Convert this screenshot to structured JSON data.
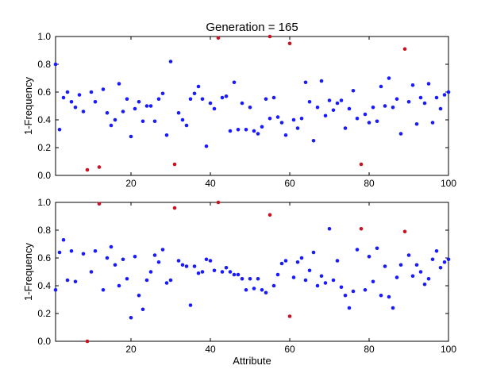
{
  "colors": {
    "normal": "#1a1aff",
    "highlight": "#cc1122",
    "axis": "#000000"
  },
  "chart_data": [
    {
      "type": "scatter",
      "title": "Generation = 165",
      "xlabel": "",
      "ylabel": "1-Frequency",
      "xlim": [
        1,
        100
      ],
      "ylim": [
        0,
        1
      ],
      "xticks": [
        20,
        40,
        60,
        80,
        100
      ],
      "yticks": [
        0,
        0.2,
        0.4,
        0.6,
        0.8,
        1.0
      ],
      "grid": false,
      "series": [
        {
          "x": [
            1,
            2,
            3,
            4,
            5,
            6,
            7,
            8,
            10,
            11,
            13,
            14,
            15,
            16,
            17,
            18,
            19,
            20,
            21,
            22,
            23,
            24,
            25,
            26,
            27,
            28,
            29,
            30,
            32,
            33,
            34,
            35,
            36,
            37,
            38,
            39,
            40,
            41,
            43,
            44,
            45,
            46,
            47,
            48,
            49,
            50,
            51,
            52,
            53,
            54,
            55,
            56,
            57,
            58,
            59,
            61,
            62,
            63,
            64,
            65,
            66,
            67,
            68,
            69,
            70,
            71,
            72,
            73,
            74,
            75,
            76,
            77,
            79,
            80,
            81,
            82,
            83,
            84,
            85,
            86,
            87,
            88,
            90,
            91,
            92,
            93,
            94,
            95,
            96,
            97,
            98,
            99,
            100
          ],
          "y": [
            0.8,
            0.33,
            0.56,
            0.6,
            0.53,
            0.49,
            0.58,
            0.46,
            0.6,
            0.53,
            0.62,
            0.45,
            0.36,
            0.4,
            0.66,
            0.46,
            0.55,
            0.28,
            0.48,
            0.53,
            0.39,
            0.5,
            0.5,
            0.39,
            0.55,
            0.59,
            0.29,
            0.82,
            0.45,
            0.4,
            0.36,
            0.55,
            0.59,
            0.64,
            0.55,
            0.21,
            0.52,
            0.48,
            0.56,
            0.57,
            0.32,
            0.67,
            0.33,
            0.52,
            0.33,
            0.49,
            0.32,
            0.3,
            0.35,
            0.55,
            0.41,
            0.56,
            0.42,
            0.38,
            0.29,
            0.4,
            0.34,
            0.41,
            0.67,
            0.53,
            0.25,
            0.49,
            0.68,
            0.43,
            0.54,
            0.47,
            0.52,
            0.54,
            0.34,
            0.48,
            0.61,
            0.41,
            0.44,
            0.38,
            0.49,
            0.39,
            0.64,
            0.5,
            0.7,
            0.49,
            0.55,
            0.3,
            0.53,
            0.65,
            0.37,
            0.56,
            0.52,
            0.66,
            0.38,
            0.56,
            0.48,
            0.58,
            0.6
          ]
        },
        {
          "x": [
            9,
            12,
            31,
            42,
            55,
            60,
            78,
            89
          ],
          "y": [
            0.04,
            0.06,
            0.08,
            0.99,
            1.0,
            0.95,
            0.08,
            0.91
          ]
        }
      ]
    },
    {
      "type": "scatter",
      "title": "",
      "xlabel": "Attribute",
      "ylabel": "1-Frequency",
      "xlim": [
        1,
        100
      ],
      "ylim": [
        0,
        1
      ],
      "xticks": [
        20,
        40,
        60,
        80,
        100
      ],
      "yticks": [
        0,
        0.2,
        0.4,
        0.6,
        0.8,
        1.0
      ],
      "grid": false,
      "series": [
        {
          "x": [
            1,
            2,
            3,
            4,
            5,
            6,
            8,
            10,
            11,
            13,
            14,
            15,
            16,
            17,
            18,
            19,
            20,
            21,
            22,
            23,
            24,
            25,
            26,
            27,
            28,
            29,
            30,
            32,
            33,
            34,
            35,
            36,
            37,
            38,
            39,
            40,
            41,
            43,
            44,
            45,
            46,
            47,
            48,
            49,
            50,
            51,
            52,
            53,
            54,
            56,
            57,
            58,
            59,
            61,
            62,
            63,
            64,
            65,
            66,
            67,
            68,
            69,
            70,
            71,
            72,
            73,
            74,
            75,
            76,
            77,
            79,
            80,
            81,
            82,
            83,
            84,
            85,
            86,
            87,
            88,
            90,
            91,
            92,
            93,
            94,
            95,
            96,
            97,
            98,
            99,
            100
          ],
          "y": [
            0.37,
            0.64,
            0.73,
            0.44,
            0.65,
            0.43,
            0.63,
            0.5,
            0.65,
            0.37,
            0.6,
            0.68,
            0.55,
            0.4,
            0.59,
            0.45,
            0.17,
            0.61,
            0.33,
            0.23,
            0.44,
            0.5,
            0.62,
            0.57,
            0.66,
            0.42,
            0.44,
            0.58,
            0.55,
            0.54,
            0.26,
            0.54,
            0.49,
            0.5,
            0.59,
            0.58,
            0.51,
            0.5,
            0.53,
            0.5,
            0.48,
            0.48,
            0.45,
            0.37,
            0.45,
            0.38,
            0.45,
            0.37,
            0.35,
            0.4,
            0.48,
            0.56,
            0.58,
            0.46,
            0.57,
            0.6,
            0.44,
            0.51,
            0.64,
            0.4,
            0.47,
            0.42,
            0.81,
            0.44,
            0.58,
            0.39,
            0.33,
            0.24,
            0.36,
            0.66,
            0.37,
            0.61,
            0.43,
            0.67,
            0.33,
            0.54,
            0.32,
            0.24,
            0.46,
            0.55,
            0.62,
            0.47,
            0.55,
            0.5,
            0.41,
            0.45,
            0.59,
            0.65,
            0.53,
            0.57,
            0.59
          ]
        },
        {
          "x": [
            9,
            12,
            31,
            42,
            55,
            60,
            78,
            89
          ],
          "y": [
            0.0,
            0.99,
            0.96,
            1.0,
            0.91,
            0.18,
            0.81,
            0.79
          ]
        }
      ]
    }
  ]
}
